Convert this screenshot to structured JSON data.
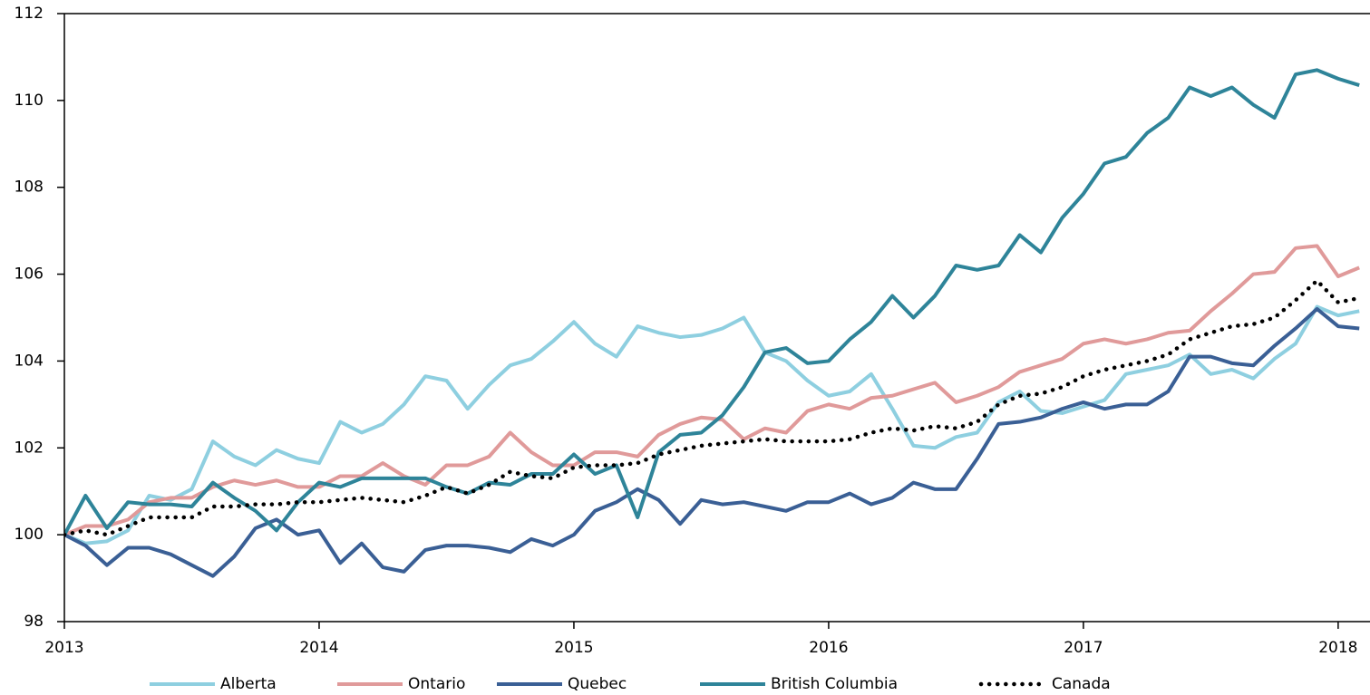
{
  "chart_data": {
    "type": "line",
    "x": [
      2013,
      2013.083,
      2013.167,
      2013.25,
      2013.333,
      2013.417,
      2013.5,
      2013.583,
      2013.667,
      2013.75,
      2013.833,
      2013.917,
      2014,
      2014.083,
      2014.167,
      2014.25,
      2014.333,
      2014.417,
      2014.5,
      2014.583,
      2014.667,
      2014.75,
      2014.833,
      2014.917,
      2015,
      2015.083,
      2015.167,
      2015.25,
      2015.333,
      2015.417,
      2015.5,
      2015.583,
      2015.667,
      2015.75,
      2015.833,
      2015.917,
      2016,
      2016.083,
      2016.167,
      2016.25,
      2016.333,
      2016.417,
      2016.5,
      2016.583,
      2016.667,
      2016.75,
      2016.833,
      2016.917,
      2017,
      2017.083,
      2017.167,
      2017.25,
      2017.333,
      2017.417,
      2017.5,
      2017.583,
      2017.667,
      2017.75,
      2017.833,
      2017.917,
      2018,
      2018.083
    ],
    "series": [
      {
        "name": "Alberta",
        "color": "#8ecfe0",
        "style": "solid",
        "values": [
          100,
          99.8,
          99.85,
          100.1,
          100.9,
          100.8,
          101.05,
          102.15,
          101.8,
          101.6,
          101.95,
          101.75,
          101.65,
          102.6,
          102.35,
          102.55,
          103.0,
          103.65,
          103.55,
          102.9,
          103.45,
          103.9,
          104.05,
          104.45,
          104.9,
          104.4,
          104.1,
          104.8,
          104.65,
          104.55,
          104.6,
          104.75,
          105.0,
          104.2,
          104.0,
          103.55,
          103.2,
          103.3,
          103.7,
          102.9,
          102.05,
          102.0,
          102.25,
          102.35,
          103.05,
          103.3,
          102.85,
          102.8,
          102.95,
          103.1,
          103.7,
          103.8,
          103.9,
          104.15,
          103.7,
          103.8,
          103.6,
          104.05,
          104.4,
          105.25,
          105.05,
          105.15
        ]
      },
      {
        "name": "Ontario",
        "color": "#e09a9a",
        "style": "solid",
        "values": [
          100,
          100.2,
          100.2,
          100.35,
          100.75,
          100.85,
          100.85,
          101.1,
          101.25,
          101.15,
          101.25,
          101.1,
          101.1,
          101.35,
          101.35,
          101.65,
          101.35,
          101.15,
          101.6,
          101.6,
          101.8,
          102.35,
          101.9,
          101.6,
          101.6,
          101.9,
          101.9,
          101.8,
          102.3,
          102.55,
          102.7,
          102.65,
          102.2,
          102.45,
          102.35,
          102.85,
          103.0,
          102.9,
          103.15,
          103.2,
          103.35,
          103.5,
          103.05,
          103.2,
          103.4,
          103.75,
          103.9,
          104.05,
          104.4,
          104.5,
          104.4,
          104.5,
          104.65,
          104.7,
          105.15,
          105.55,
          106.0,
          106.05,
          106.6,
          106.65,
          105.95,
          106.15
        ]
      },
      {
        "name": "Quebec",
        "color": "#3a5f95",
        "style": "solid",
        "values": [
          100,
          99.75,
          99.3,
          99.7,
          99.7,
          99.55,
          99.3,
          99.05,
          99.5,
          100.15,
          100.35,
          100.0,
          100.1,
          99.35,
          99.8,
          99.25,
          99.15,
          99.65,
          99.75,
          99.75,
          99.7,
          99.6,
          99.9,
          99.75,
          100.0,
          100.55,
          100.75,
          101.05,
          100.8,
          100.25,
          100.8,
          100.7,
          100.75,
          100.65,
          100.55,
          100.75,
          100.75,
          100.95,
          100.7,
          100.85,
          101.2,
          101.05,
          101.05,
          101.75,
          102.55,
          102.6,
          102.7,
          102.9,
          103.05,
          102.9,
          103.0,
          103.0,
          103.3,
          104.1,
          104.1,
          103.95,
          103.9,
          104.35,
          104.75,
          105.2,
          104.8,
          104.75
        ]
      },
      {
        "name": "British Columbia",
        "color": "#2e8499",
        "style": "solid",
        "values": [
          100,
          100.9,
          100.15,
          100.75,
          100.7,
          100.7,
          100.65,
          101.2,
          100.85,
          100.55,
          100.1,
          100.75,
          101.2,
          101.1,
          101.3,
          101.3,
          101.3,
          101.3,
          101.1,
          100.95,
          101.2,
          101.15,
          101.4,
          101.4,
          101.85,
          101.4,
          101.6,
          100.4,
          101.9,
          102.3,
          102.35,
          102.75,
          103.4,
          104.2,
          104.3,
          103.95,
          104.0,
          104.5,
          104.9,
          105.5,
          105.0,
          105.5,
          106.2,
          106.1,
          106.2,
          106.9,
          106.5,
          107.3,
          107.85,
          108.55,
          108.7,
          109.25,
          109.6,
          110.3,
          110.1,
          110.3,
          109.9,
          109.6,
          110.6,
          110.7,
          110.5,
          110.35
        ]
      },
      {
        "name": "Canada",
        "color": "#000000",
        "style": "dotted",
        "values": [
          100,
          100.1,
          100.0,
          100.2,
          100.4,
          100.4,
          100.4,
          100.65,
          100.65,
          100.7,
          100.7,
          100.75,
          100.75,
          100.8,
          100.85,
          100.8,
          100.75,
          100.9,
          101.1,
          100.95,
          101.15,
          101.45,
          101.35,
          101.3,
          101.55,
          101.6,
          101.6,
          101.65,
          101.85,
          101.95,
          102.05,
          102.1,
          102.15,
          102.2,
          102.15,
          102.15,
          102.15,
          102.2,
          102.35,
          102.45,
          102.4,
          102.5,
          102.45,
          102.6,
          103.0,
          103.2,
          103.25,
          103.4,
          103.65,
          103.8,
          103.9,
          104.0,
          104.15,
          104.5,
          104.65,
          104.8,
          104.85,
          105.0,
          105.4,
          105.85,
          105.35,
          105.45
        ]
      }
    ],
    "xlim": [
      2013,
      2018.125
    ],
    "xticks": [
      2013,
      2014,
      2015,
      2016,
      2017,
      2018
    ],
    "ylim": [
      98,
      112
    ],
    "yticks": [
      98,
      100,
      102,
      104,
      106,
      108,
      110,
      112
    ],
    "grid": false,
    "legend": "bottom"
  }
}
